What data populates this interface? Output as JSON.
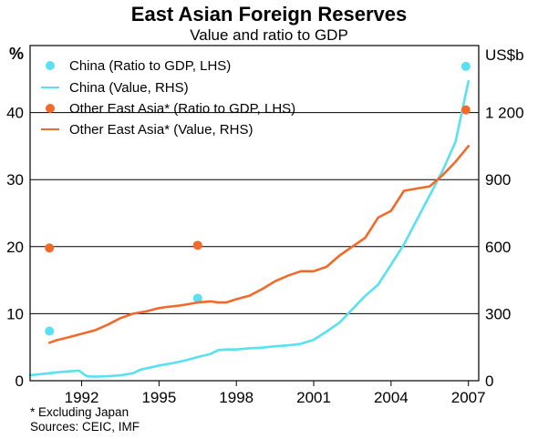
{
  "chart_data": {
    "type": "line",
    "title": "East Asian Foreign Reserves",
    "subtitle": "Value and ratio to GDP",
    "left_axis_unit": "%",
    "right_axis_unit": "US$b",
    "left_ylim": [
      0,
      50
    ],
    "right_ylim": [
      0,
      1500
    ],
    "left_ticks": [
      "0",
      "10",
      "20",
      "30",
      "40"
    ],
    "right_ticks": [
      "0",
      "300",
      "600",
      "900",
      "1 200"
    ],
    "x_ticks": [
      "1992",
      "1995",
      "1998",
      "2001",
      "2004",
      "2007"
    ],
    "xlim": [
      1990.0,
      2007.4
    ],
    "grid": true,
    "legend_position": "top-left",
    "colors": {
      "china": "#5ae1f1",
      "other": "#f26a2b"
    },
    "series": [
      {
        "name": "China (Ratio to GDP, LHS)",
        "kind": "points",
        "axis": "left",
        "color": "#5ae1f1",
        "x": [
          1990.75,
          1996.5,
          2006.9
        ],
        "y": [
          7.4,
          12.3,
          46.9
        ]
      },
      {
        "name": "China (Value, RHS)",
        "kind": "line",
        "axis": "right",
        "color": "#5ae1f1",
        "x": [
          1990.0,
          1990.5,
          1991.0,
          1991.5,
          1991.9,
          1992.2,
          1992.5,
          1993.0,
          1993.5,
          1994.0,
          1994.3,
          1994.7,
          1995.0,
          1995.5,
          1996.0,
          1996.5,
          1997.0,
          1997.3,
          1997.6,
          1998.0,
          1998.5,
          1999.0,
          1999.5,
          2000.0,
          2000.5,
          2001.0,
          2001.5,
          2002.0,
          2002.5,
          2003.0,
          2003.5,
          2004.0,
          2004.5,
          2005.0,
          2005.5,
          2006.0,
          2006.5,
          2007.0
        ],
        "y": [
          25,
          30,
          37,
          42,
          45,
          20,
          18,
          20,
          24,
          34,
          50,
          60,
          68,
          78,
          90,
          106,
          120,
          137,
          140,
          140,
          145,
          148,
          154,
          158,
          165,
          183,
          220,
          260,
          320,
          380,
          430,
          520,
          610,
          720,
          830,
          940,
          1070,
          1340
        ]
      },
      {
        "name": "Other East Asia* (Ratio to GDP, LHS)",
        "kind": "points",
        "axis": "left",
        "color": "#f26a2b",
        "x": [
          1990.75,
          1996.5,
          2006.9
        ],
        "y": [
          19.8,
          20.2,
          40.4
        ]
      },
      {
        "name": "Other East Asia* (Value, RHS)",
        "kind": "line",
        "axis": "right",
        "color": "#f26a2b",
        "x": [
          1990.75,
          1991.0,
          1991.5,
          1992.0,
          1992.5,
          1993.0,
          1993.5,
          1994.0,
          1994.5,
          1995.0,
          1995.3,
          1995.7,
          1996.0,
          1996.5,
          1997.0,
          1997.3,
          1997.6,
          1998.0,
          1998.5,
          1999.0,
          1999.5,
          2000.0,
          2000.5,
          2001.0,
          2001.5,
          2002.0,
          2002.5,
          2003.0,
          2003.5,
          2004.0,
          2004.5,
          2005.0,
          2005.5,
          2006.0,
          2006.5,
          2007.0
        ],
        "y": [
          170,
          180,
          195,
          210,
          225,
          250,
          280,
          300,
          310,
          325,
          330,
          335,
          340,
          350,
          355,
          350,
          350,
          365,
          380,
          410,
          445,
          470,
          490,
          490,
          510,
          560,
          600,
          640,
          730,
          760,
          850,
          860,
          870,
          920,
          980,
          1050
        ]
      }
    ]
  },
  "footnotes": {
    "note": "*   Excluding Japan",
    "sources": "Sources: CEIC, IMF"
  }
}
